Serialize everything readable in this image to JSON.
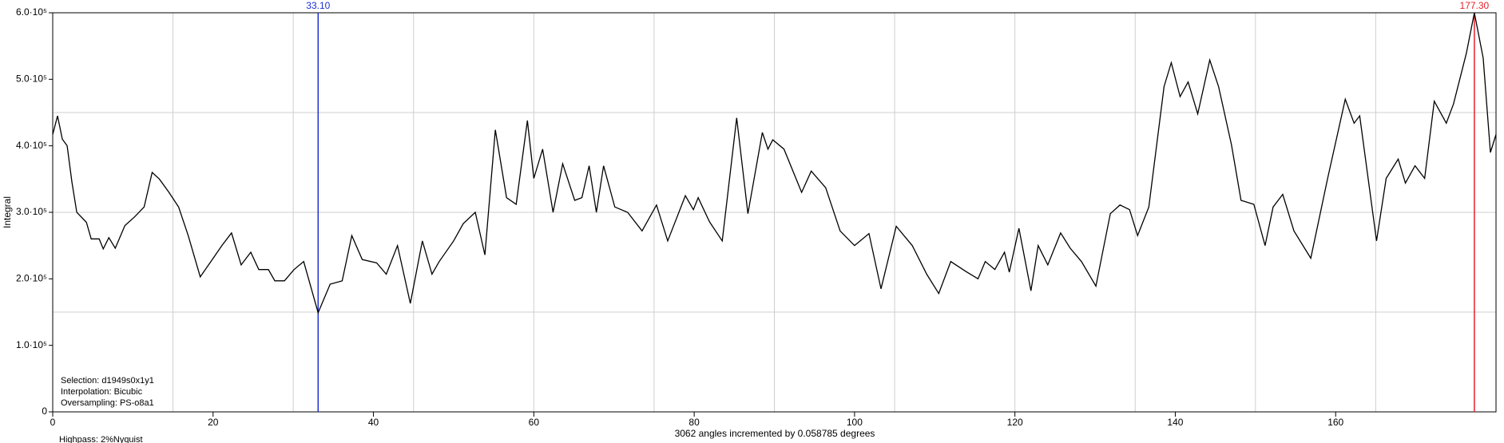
{
  "chart_data": {
    "type": "line",
    "xlabel": "3062 angles incremented by 0.058785 degrees",
    "ylabel": "Integral",
    "annotations": [
      "Selection: d1949s0x1y1",
      "Interpolation: Bicubic",
      "Oversampling: PS-o8a1",
      "Highpass: 2%Nyquist"
    ],
    "xlim": [
      0,
      180
    ],
    "ylim": [
      0,
      600000
    ],
    "xticks": [
      0,
      20,
      40,
      60,
      80,
      100,
      120,
      140,
      160
    ],
    "yticks": [
      {
        "value": 0,
        "label": "0"
      },
      {
        "value": 100000,
        "label": "1.0·10⁵"
      },
      {
        "value": 200000,
        "label": "2.0·10⁵"
      },
      {
        "value": 300000,
        "label": "3.0·10⁵"
      },
      {
        "value": 400000,
        "label": "4.0·10⁵"
      },
      {
        "value": 500000,
        "label": "5.0·10⁵"
      },
      {
        "value": 600000,
        "label": "6.0·10⁵"
      }
    ],
    "xgrid": [
      15,
      30,
      45,
      60,
      75,
      90,
      105,
      120,
      135,
      150,
      165
    ],
    "ygrid": [
      150000,
      300000,
      450000
    ],
    "markers": [
      {
        "value": 33.1,
        "label": "33.10",
        "color": "#1f2fd0"
      },
      {
        "value": 177.3,
        "label": "177.30",
        "color": "#e8202a"
      }
    ],
    "series": [
      {
        "color": "#000000",
        "x": [
          0,
          0.6,
          1.2,
          1.8,
          2.4,
          3,
          4.2,
          4.8,
          5.8,
          6.3,
          7,
          7.8,
          9,
          10.2,
          11.4,
          12.4,
          13.3,
          14.5,
          15.7,
          16.9,
          18.4,
          19.9,
          21.1,
          22.3,
          23.5,
          24.7,
          25.7,
          26.9,
          27.7,
          28.9,
          30.1,
          31.3,
          33.1,
          34.6,
          36.1,
          37.3,
          38.6,
          40.4,
          41.6,
          43,
          44.6,
          46.1,
          47.3,
          48.2,
          50,
          51.2,
          52.7,
          53.9,
          55.2,
          56.6,
          57.8,
          59.2,
          60,
          61.1,
          62.4,
          63.6,
          65.1,
          66,
          66.9,
          67.8,
          68.7,
          70.1,
          71.7,
          73.5,
          75.3,
          76.7,
          78.9,
          79.9,
          80.5,
          81.9,
          83.5,
          85.3,
          86.7,
          88.5,
          89.2,
          89.8,
          91.2,
          93.4,
          94.6,
          96.4,
          98.2,
          100,
          101.8,
          103.3,
          105.2,
          107.2,
          109,
          110.5,
          112,
          113.9,
          115.4,
          116.3,
          117.5,
          118.7,
          119.3,
          120.5,
          122,
          122.9,
          124.1,
          125.7,
          126.9,
          128.3,
          130.1,
          131.9,
          133.1,
          134.3,
          135.3,
          136.7,
          138.6,
          139.5,
          140.6,
          141.6,
          142.8,
          144.3,
          145.4,
          147,
          148.2,
          149.8,
          151.2,
          152.2,
          153.4,
          154.8,
          156.9,
          159,
          161.2,
          162.3,
          163,
          165.1,
          166.3,
          167.8,
          168.7,
          169.9,
          171.1,
          172.3,
          173.8,
          174.7,
          176.3,
          177.3,
          178.4,
          179.3,
          180
        ],
        "values": [
          417000,
          445000,
          410000,
          400000,
          345000,
          300000,
          285000,
          260000,
          260000,
          245000,
          262000,
          246000,
          280000,
          293000,
          308000,
          360000,
          350000,
          330000,
          308000,
          265000,
          203000,
          229000,
          250000,
          269000,
          221000,
          240000,
          214000,
          214000,
          197000,
          197000,
          214000,
          226000,
          149000,
          192000,
          197000,
          265000,
          229000,
          224000,
          207000,
          250000,
          163000,
          257000,
          207000,
          226000,
          257000,
          283000,
          300000,
          236000,
          424000,
          322000,
          312000,
          438000,
          351000,
          395000,
          300000,
          373000,
          318000,
          322000,
          370000,
          300000,
          370000,
          308000,
          300000,
          272000,
          311000,
          257000,
          325000,
          304000,
          322000,
          286000,
          257000,
          442000,
          298000,
          420000,
          395000,
          409000,
          395000,
          330000,
          362000,
          337000,
          272000,
          250000,
          268000,
          185000,
          279000,
          250000,
          207000,
          178000,
          226000,
          211000,
          200000,
          226000,
          214000,
          240000,
          210000,
          276000,
          182000,
          250000,
          221000,
          269000,
          246000,
          226000,
          189000,
          298000,
          311000,
          304000,
          265000,
          308000,
          489000,
          525000,
          474000,
          496000,
          448000,
          529000,
          489000,
          402000,
          318000,
          312000,
          250000,
          308000,
          327000,
          272000,
          231000,
          351000,
          470000,
          434000,
          445000,
          257000,
          351000,
          380000,
          344000,
          370000,
          351000,
          467000,
          434000,
          463000,
          539000,
          600000,
          532000,
          390000,
          417000
        ]
      }
    ]
  }
}
